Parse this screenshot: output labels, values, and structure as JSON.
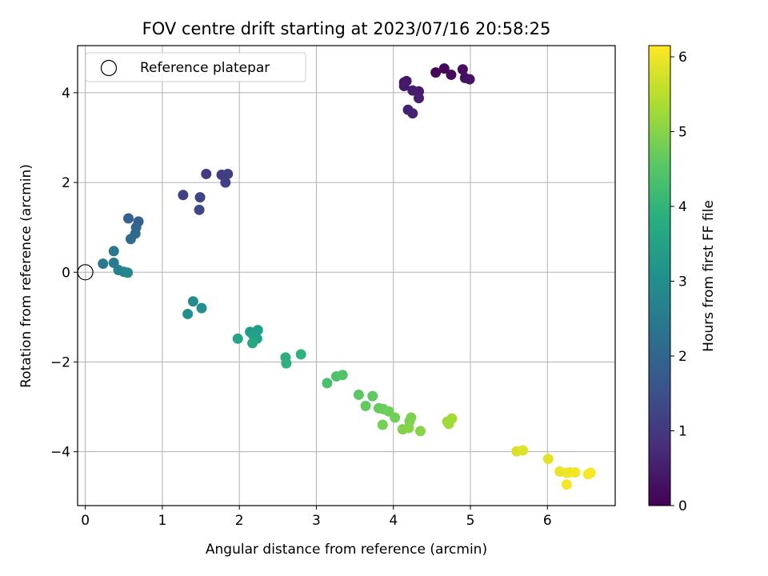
{
  "chart_data": {
    "type": "scatter",
    "title": "FOV centre drift starting at 2023/07/16 20:58:25",
    "xlabel": "Angular distance from reference (arcmin)",
    "ylabel": "Rotation from reference (arcmin)",
    "xlim": [
      -0.1,
      6.88
    ],
    "ylim": [
      -5.2,
      5.05
    ],
    "xticks": [
      0,
      1,
      2,
      3,
      4,
      5,
      6
    ],
    "yticks": [
      -4,
      -2,
      0,
      2,
      4
    ],
    "ytick_labels": [
      "−4",
      "−2",
      "0",
      "2",
      "4"
    ],
    "grid": true,
    "legend": {
      "placement": "top-left",
      "entries": [
        "Reference platepar"
      ]
    },
    "reference_point": {
      "x": 0,
      "y": 0
    },
    "colorbar": {
      "label": "Hours from first FF file",
      "range": [
        0,
        6.15
      ],
      "ticks": [
        0,
        1,
        2,
        3,
        4,
        5,
        6
      ],
      "colormap": "viridis"
    },
    "series": [
      {
        "points": [
          [
            4.55,
            4.45,
            0.05
          ],
          [
            4.66,
            4.54,
            0.1
          ],
          [
            4.75,
            4.4,
            0.15
          ],
          [
            4.9,
            4.52,
            0.2
          ],
          [
            4.93,
            4.33,
            0.25
          ],
          [
            4.99,
            4.3,
            0.3
          ],
          [
            4.14,
            4.23,
            0.35
          ],
          [
            4.17,
            4.26,
            0.38
          ],
          [
            4.14,
            4.15,
            0.42
          ],
          [
            4.25,
            4.05,
            0.45
          ],
          [
            4.33,
            4.03,
            0.48
          ],
          [
            4.33,
            3.88,
            0.52
          ],
          [
            4.19,
            3.62,
            0.55
          ],
          [
            4.25,
            3.54,
            0.6
          ],
          [
            1.57,
            2.19,
            1.05
          ],
          [
            1.77,
            2.17,
            1.1
          ],
          [
            1.85,
            2.19,
            1.15
          ],
          [
            1.82,
            2.0,
            1.18
          ],
          [
            1.27,
            1.72,
            1.22
          ],
          [
            1.49,
            1.67,
            1.28
          ],
          [
            1.48,
            1.39,
            1.32
          ],
          [
            0.56,
            1.2,
            1.9
          ],
          [
            0.69,
            1.13,
            1.95
          ],
          [
            0.66,
            1.0,
            2.0
          ],
          [
            0.65,
            0.86,
            2.05
          ],
          [
            0.59,
            0.74,
            2.1
          ],
          [
            0.37,
            0.47,
            2.45
          ],
          [
            0.23,
            0.19,
            2.5
          ],
          [
            0.37,
            0.21,
            2.55
          ],
          [
            0.43,
            0.05,
            2.65
          ],
          [
            0.5,
            0.01,
            2.75
          ],
          [
            0.55,
            -0.01,
            2.85
          ],
          [
            1.4,
            -0.65,
            3.0
          ],
          [
            1.51,
            -0.8,
            3.05
          ],
          [
            1.33,
            -0.93,
            3.1
          ],
          [
            2.14,
            -1.33,
            3.4
          ],
          [
            2.24,
            -1.29,
            3.45
          ],
          [
            2.18,
            -1.4,
            3.5
          ],
          [
            2.23,
            -1.48,
            3.55
          ],
          [
            1.98,
            -1.48,
            3.6
          ],
          [
            2.17,
            -1.58,
            3.65
          ],
          [
            2.6,
            -1.9,
            3.85
          ],
          [
            2.61,
            -2.03,
            3.9
          ],
          [
            2.8,
            -1.83,
            3.95
          ],
          [
            3.14,
            -2.47,
            4.35
          ],
          [
            3.26,
            -2.32,
            4.4
          ],
          [
            3.34,
            -2.29,
            4.45
          ],
          [
            3.55,
            -2.73,
            4.55
          ],
          [
            3.73,
            -2.76,
            4.6
          ],
          [
            3.64,
            -2.98,
            4.65
          ],
          [
            3.81,
            -3.03,
            4.7
          ],
          [
            3.87,
            -3.05,
            4.72
          ],
          [
            3.94,
            -3.1,
            4.75
          ],
          [
            4.02,
            -3.24,
            4.8
          ],
          [
            3.86,
            -3.4,
            4.85
          ],
          [
            4.21,
            -3.32,
            4.9
          ],
          [
            4.23,
            -3.24,
            4.93
          ],
          [
            4.12,
            -3.5,
            4.96
          ],
          [
            4.2,
            -3.47,
            5.0
          ],
          [
            4.35,
            -3.54,
            5.03
          ],
          [
            4.7,
            -3.33,
            5.25
          ],
          [
            4.72,
            -3.38,
            5.28
          ],
          [
            4.76,
            -3.26,
            5.3
          ],
          [
            5.6,
            -3.99,
            5.8
          ],
          [
            5.68,
            -3.97,
            5.85
          ],
          [
            6.01,
            -4.16,
            5.9
          ],
          [
            6.16,
            -4.44,
            5.95
          ],
          [
            6.25,
            -4.47,
            6.0
          ],
          [
            6.29,
            -4.46,
            6.02
          ],
          [
            6.36,
            -4.46,
            6.05
          ],
          [
            6.25,
            -4.73,
            6.08
          ],
          [
            6.53,
            -4.5,
            6.1
          ],
          [
            6.56,
            -4.47,
            6.12
          ]
        ]
      }
    ]
  }
}
